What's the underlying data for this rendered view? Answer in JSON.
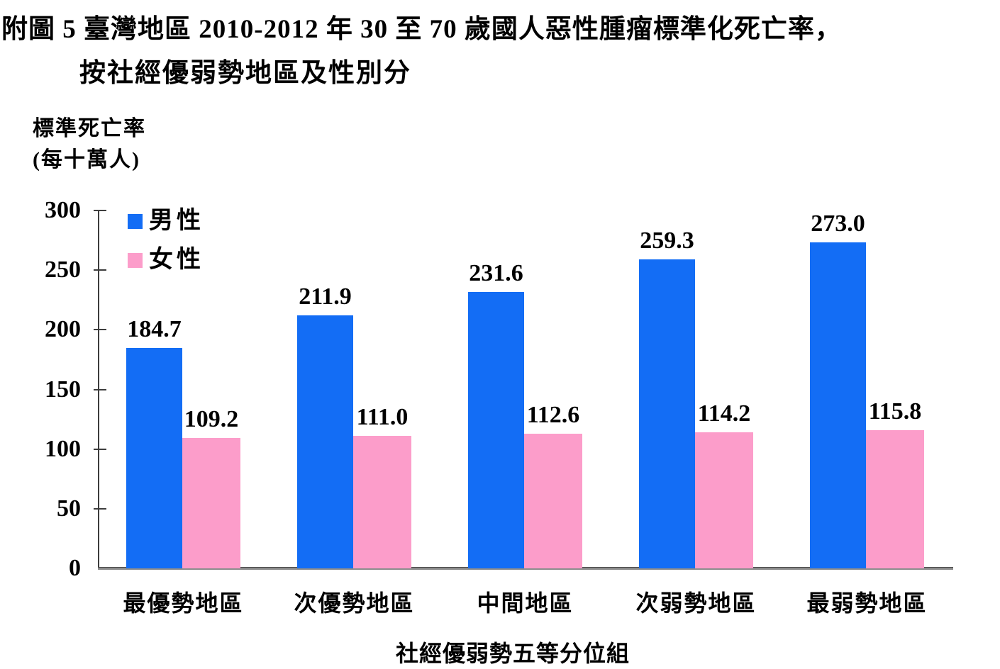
{
  "title": {
    "line1": "附圖 5 臺灣地區 2010-2012 年 30 至 70 歲國人惡性腫瘤標準化死亡率，",
    "line2": "按社經優弱勢地區及性別分"
  },
  "y_axis_unit": {
    "line1": "標準死亡率",
    "line2": "(每十萬人)"
  },
  "colors": {
    "male_blue": "#136DF5",
    "female_pink": "#FC9DCA",
    "axis": "#3d3d3d",
    "baseline": "#8c8c8c"
  },
  "chart_data": {
    "type": "bar",
    "title": "附圖 5 臺灣地區 2010-2012 年 30 至 70 歲國人惡性腫瘤標準化死亡率，按社經優弱勢地區及性別分",
    "categories": [
      "最優勢地區",
      "次優勢地區",
      "中間地區",
      "次弱勢地區",
      "最弱勢地區"
    ],
    "series": [
      {
        "name": "男性",
        "color": "#136DF5",
        "values": [
          184.7,
          211.9,
          231.6,
          259.3,
          273.0
        ]
      },
      {
        "name": "女性",
        "color": "#FC9DCA",
        "values": [
          109.2,
          111.0,
          112.6,
          114.2,
          115.8
        ]
      }
    ],
    "xlabel": "社經優弱勢五等分位組",
    "ylabel": "標準死亡率(每十萬人)",
    "ylim": [
      0,
      300
    ],
    "yticks": [
      0,
      50,
      100,
      150,
      200,
      250,
      300
    ],
    "grid": false,
    "legend_position": "top-left-inside",
    "value_label_decimals": 1
  }
}
